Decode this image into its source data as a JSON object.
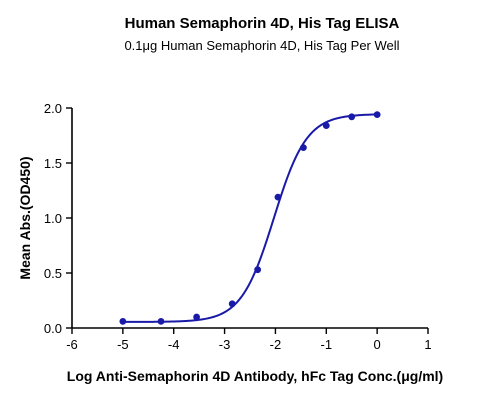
{
  "chart_data": {
    "type": "scatter",
    "title": "Human Semaphorin 4D, His Tag ELISA",
    "subtitle": "0.1μg Human Semaphorin 4D,  His Tag Per Well",
    "xlabel": "Log Anti-Semaphorin 4D Antibody, hFc Tag Conc.(μg/ml)",
    "ylabel": "Mean Abs.(OD450)",
    "xlim": [
      -6,
      1
    ],
    "ylim": [
      0,
      2.0
    ],
    "xticks": [
      "-6",
      "-5",
      "-4",
      "-3",
      "-2",
      "-1",
      "0",
      "1"
    ],
    "yticks": [
      "0.0",
      "0.5",
      "1.0",
      "1.5",
      "2.0"
    ],
    "grid": false,
    "series": [
      {
        "color": "#1a1aa8",
        "x": [
          -5.0,
          -4.25,
          -3.55,
          -2.85,
          -2.35,
          -1.95,
          -1.45,
          -1.0,
          -0.5,
          0.0
        ],
        "y": [
          0.06,
          0.06,
          0.1,
          0.22,
          0.53,
          1.19,
          1.64,
          1.84,
          1.92,
          1.94
        ],
        "fit": "4PL sigmoid"
      }
    ]
  }
}
